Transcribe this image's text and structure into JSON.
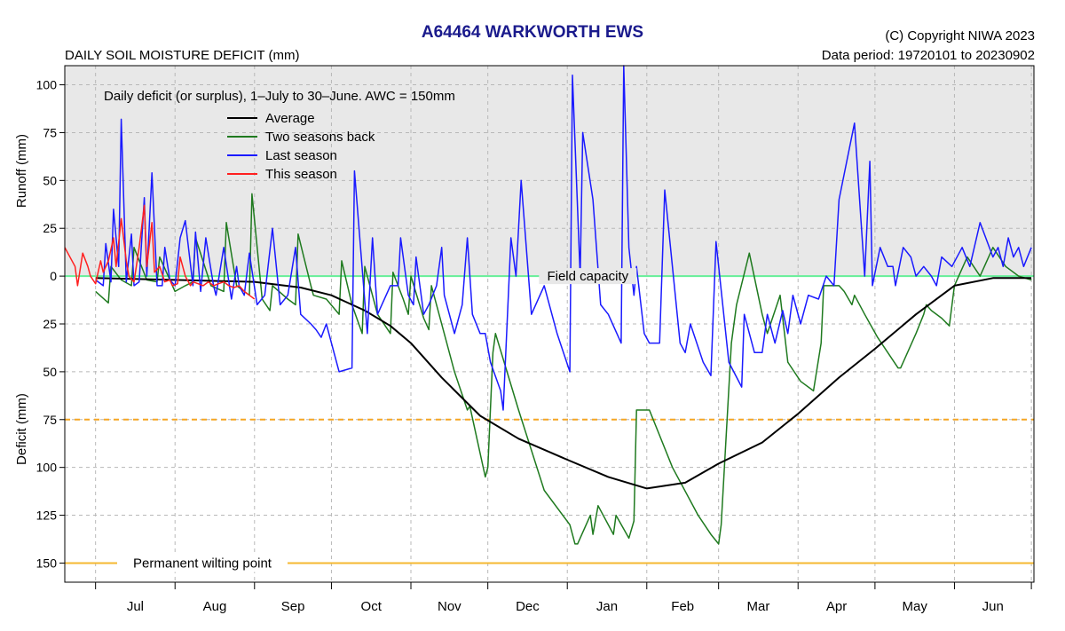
{
  "header": {
    "title": "A64464  WARKWORTH EWS",
    "copyright": "(C) Copyright NIWA  2023",
    "subtitle": "DAILY SOIL MOISTURE DEFICIT (mm)",
    "data_period": "Data period:  19720101  to  20230902"
  },
  "colors": {
    "average": "#000000",
    "two_seasons_back": "#1f7a1f",
    "last_season": "#1a1aff",
    "this_season": "#ff2020",
    "field_capacity": "#66ee99",
    "awc_line": "#f5a623",
    "wilting_line": "#f5b830",
    "plot_bg": "#e8e8e8"
  },
  "chart_data": {
    "type": "line",
    "title": "A64464  WARKWORTH EWS",
    "subtitle": "DAILY SOIL MOISTURE DEFICIT (mm)",
    "annotation": "Daily deficit (or surplus), 1–July to 30–June.  AWC = 150mm",
    "ylabel_top": "Runoff (mm)",
    "ylabel_bottom": "Deficit (mm)",
    "ylim": [
      -160,
      110
    ],
    "y_ticks": [
      100,
      75,
      50,
      25,
      0,
      -25,
      -50,
      -75,
      -100,
      -125,
      -150
    ],
    "y_tick_labels": [
      "100",
      "75",
      "50",
      "25",
      "0",
      "25",
      "50",
      "75",
      "100",
      "125",
      "150"
    ],
    "xlim": [
      -12,
      366
    ],
    "month_starts": [
      0,
      31,
      62,
      92,
      123,
      153,
      184,
      215,
      243,
      274,
      304,
      335,
      365
    ],
    "month_labels": [
      "Jul",
      "Aug",
      "Sep",
      "Oct",
      "Nov",
      "Dec",
      "Jan",
      "Feb",
      "Mar",
      "Apr",
      "May",
      "Jun"
    ],
    "grid": true,
    "legend_position": "top-left",
    "reference_lines": [
      {
        "label": "Field capacity",
        "y": 0,
        "color_key": "field_capacity"
      },
      {
        "label": "",
        "y": -75,
        "color_key": "awc_line",
        "dashed": true
      },
      {
        "label": "Permanent wilting point",
        "y": -150,
        "color_key": "wilting_line"
      }
    ],
    "series": [
      {
        "name": "Average",
        "color_key": "average",
        "x": [
          0,
          31,
          62,
          80,
          92,
          105,
          115,
          123,
          135,
          150,
          165,
          184,
          200,
          215,
          230,
          243,
          260,
          274,
          290,
          304,
          320,
          335,
          350,
          365
        ],
        "y": [
          -1,
          -2,
          -3,
          -6,
          -10,
          -18,
          -26,
          -35,
          -53,
          -73,
          -85,
          -96,
          -105,
          -111,
          -108,
          -98,
          -87,
          -72,
          -53,
          -38,
          -20,
          -5,
          -1,
          -1
        ]
      },
      {
        "name": "Two seasons back",
        "color_key": "two_seasons_back",
        "x": [
          0,
          5,
          6,
          10,
          14,
          15,
          20,
          24,
          25,
          31,
          35,
          38,
          39,
          45,
          50,
          51,
          55,
          60,
          61,
          65,
          68,
          69,
          75,
          78,
          79,
          84,
          85,
          90,
          95,
          96,
          100,
          104,
          105,
          110,
          115,
          116,
          120,
          122,
          123,
          128,
          130,
          131,
          140,
          145,
          146,
          152,
          153,
          155,
          156,
          165,
          175,
          185,
          187,
          188,
          193,
          194,
          196,
          202,
          203,
          208,
          210,
          211,
          216,
          225,
          235,
          240,
          243,
          244,
          248,
          250,
          255,
          260,
          262,
          267,
          270,
          275,
          280,
          283,
          284,
          290,
          292,
          295,
          296,
          300,
          305,
          310,
          313,
          314,
          320,
          323,
          324,
          326,
          330,
          333,
          335,
          340,
          345,
          350,
          355,
          360,
          365
        ],
        "y": [
          -8,
          -14,
          5,
          -2,
          -5,
          15,
          -2,
          -3,
          10,
          -8,
          -5,
          -3,
          20,
          -5,
          -8,
          28,
          -5,
          -10,
          43,
          -12,
          -18,
          -5,
          -12,
          -15,
          22,
          -5,
          -10,
          -12,
          -20,
          8,
          -15,
          -30,
          5,
          -20,
          -30,
          2,
          -12,
          -20,
          0,
          -22,
          -28,
          -5,
          -50,
          -70,
          -68,
          -105,
          -100,
          -40,
          -30,
          -70,
          -112,
          -130,
          -140,
          -140,
          -125,
          -135,
          -120,
          -135,
          -125,
          -137,
          -128,
          -70,
          -70,
          -100,
          -125,
          -135,
          -140,
          -130,
          -35,
          -15,
          12,
          -20,
          -30,
          -10,
          -45,
          -55,
          -60,
          -35,
          -5,
          -5,
          -8,
          -15,
          -10,
          -20,
          -32,
          -42,
          -48,
          -48,
          -30,
          -20,
          -15,
          -18,
          -22,
          -26,
          -5,
          10,
          0,
          15,
          5,
          0,
          -2
        ]
      },
      {
        "name": "Last season",
        "color_key": "last_season",
        "x": [
          0,
          3,
          4,
          6,
          7,
          9,
          10,
          12,
          14,
          15,
          17,
          19,
          20,
          22,
          24,
          26,
          27,
          29,
          31,
          33,
          35,
          38,
          39,
          41,
          43,
          46,
          47,
          50,
          53,
          55,
          56,
          58,
          60,
          63,
          66,
          69,
          72,
          75,
          78,
          80,
          84,
          86,
          88,
          90,
          95,
          100,
          101,
          106,
          108,
          110,
          115,
          118,
          119,
          122,
          124,
          125,
          128,
          130,
          133,
          135,
          136,
          140,
          143,
          145,
          147,
          150,
          152,
          154,
          158,
          159,
          162,
          164,
          166,
          170,
          175,
          180,
          185,
          186,
          189,
          190,
          194,
          197,
          200,
          205,
          206,
          208,
          210,
          211,
          214,
          216,
          220,
          222,
          228,
          230,
          232,
          237,
          240,
          242,
          247,
          252,
          253,
          257,
          260,
          262,
          265,
          268,
          270,
          272,
          275,
          278,
          282,
          285,
          288,
          290,
          296,
          300,
          302,
          303,
          306,
          309,
          311,
          312,
          315,
          318,
          320,
          323,
          326,
          328,
          330,
          334,
          338,
          341,
          345,
          350,
          352,
          354,
          356,
          358,
          360,
          362,
          365
        ],
        "y": [
          -2,
          -5,
          17,
          -3,
          35,
          5,
          82,
          -3,
          22,
          -5,
          -3,
          41,
          0,
          54,
          -5,
          -5,
          15,
          -2,
          -5,
          20,
          29,
          -5,
          23,
          -8,
          20,
          -5,
          -10,
          15,
          -12,
          5,
          -5,
          -10,
          12,
          -15,
          -10,
          25,
          -15,
          -10,
          15,
          -20,
          -25,
          -28,
          -32,
          -25,
          -50,
          -48,
          55,
          -30,
          20,
          -20,
          -5,
          -5,
          20,
          -10,
          -15,
          10,
          -20,
          -15,
          -5,
          15,
          -10,
          -30,
          -15,
          20,
          -20,
          -30,
          -30,
          -45,
          -60,
          -70,
          20,
          0,
          50,
          -20,
          -5,
          -30,
          -50,
          105,
          0,
          75,
          40,
          -15,
          -20,
          -35,
          110,
          15,
          -10,
          5,
          -30,
          -35,
          -35,
          45,
          -35,
          -40,
          -25,
          -45,
          -52,
          18,
          -45,
          -58,
          -20,
          -40,
          -40,
          -20,
          -35,
          -18,
          -30,
          -10,
          -25,
          -10,
          -12,
          0,
          -5,
          40,
          80,
          0,
          60,
          -5,
          15,
          5,
          5,
          -5,
          15,
          10,
          0,
          5,
          0,
          -5,
          10,
          5,
          15,
          5,
          28,
          10,
          15,
          5,
          20,
          10,
          15,
          5,
          15
        ],
        "end": 365
      },
      {
        "name": "This season",
        "color_key": "this_season",
        "x": [
          -12,
          -8,
          -7,
          -5,
          -3,
          -2,
          0,
          2,
          3,
          5,
          7,
          8,
          10,
          12,
          13,
          15,
          17,
          19,
          20,
          22,
          23,
          25,
          27,
          29,
          30,
          32,
          33,
          35,
          37,
          38,
          40,
          42,
          44,
          46,
          48,
          50,
          52,
          54,
          56,
          58,
          60,
          62
        ],
        "y": [
          15,
          5,
          -5,
          12,
          5,
          0,
          -4,
          8,
          2,
          8,
          20,
          5,
          30,
          8,
          0,
          -3,
          15,
          37,
          5,
          28,
          2,
          5,
          -3,
          -2,
          -5,
          -4,
          10,
          0,
          -5,
          -3,
          -4,
          -5,
          -3,
          -5,
          -4,
          -3,
          -5,
          -6,
          -5,
          -8,
          -10,
          -12
        ]
      }
    ]
  }
}
